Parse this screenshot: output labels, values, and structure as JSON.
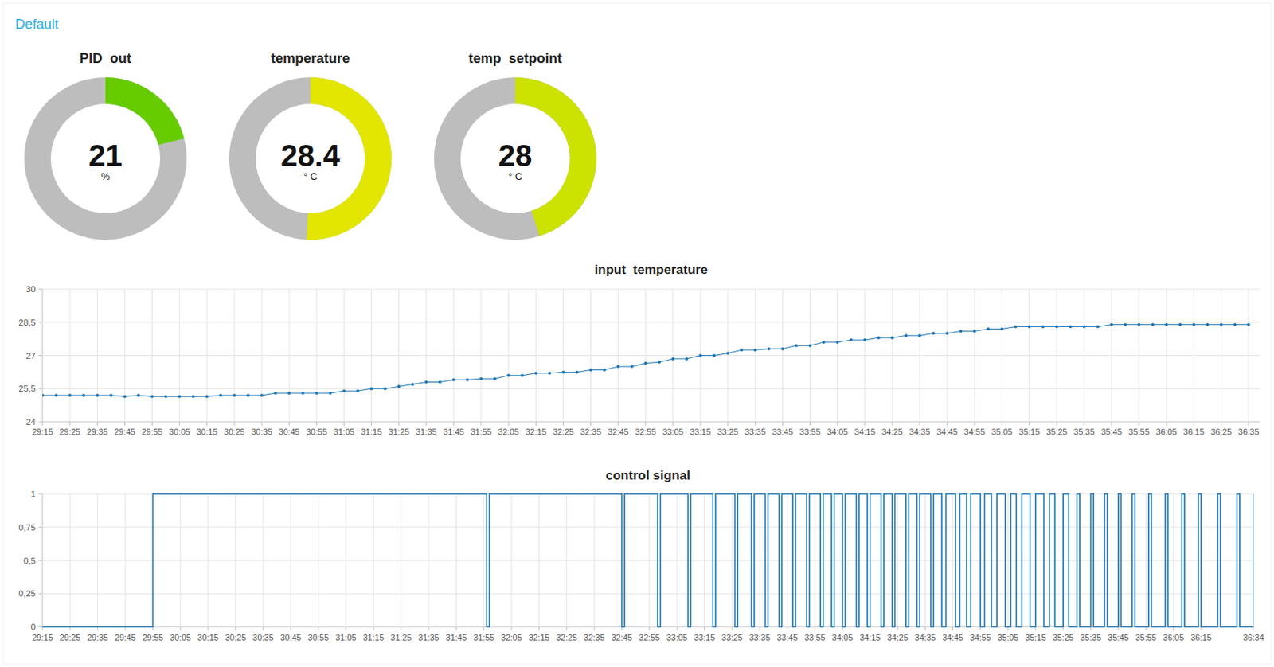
{
  "header": {
    "title": "Default"
  },
  "chart_data": [
    {
      "type": "gauge",
      "title": "PID_out",
      "value": 21,
      "unit": "%",
      "ylim": [
        0,
        100
      ],
      "color": "#66cc00",
      "data_labels": true
    },
    {
      "type": "gauge",
      "title": "temperature",
      "value": 28.4,
      "unit": "° C",
      "ylim": [
        0,
        56
      ],
      "color": "#e2e600",
      "data_labels": true
    },
    {
      "type": "gauge",
      "title": "temp_setpoint",
      "value": 28,
      "unit": "° C",
      "ylim": [
        0,
        62
      ],
      "color": "#cce200",
      "data_labels": true
    },
    {
      "type": "line",
      "title": "input_temperature",
      "color": "#1f77b4",
      "marker": "circle",
      "line_style": "solid",
      "grid": true,
      "x": [
        1755,
        1760,
        1765,
        1770,
        1775,
        1780,
        1785,
        1790,
        1795,
        1800,
        1805,
        1810,
        1815,
        1820,
        1825,
        1830,
        1835,
        1840,
        1845,
        1850,
        1855,
        1860,
        1865,
        1870,
        1875,
        1880,
        1885,
        1890,
        1895,
        1900,
        1905,
        1910,
        1915,
        1920,
        1925,
        1930,
        1935,
        1940,
        1945,
        1950,
        1955,
        1960,
        1965,
        1970,
        1975,
        1980,
        1985,
        1990,
        1995,
        2000,
        2005,
        2010,
        2015,
        2020,
        2025,
        2030,
        2035,
        2040,
        2045,
        2050,
        2055,
        2060,
        2065,
        2070,
        2075,
        2080,
        2085,
        2090,
        2095,
        2100,
        2105,
        2110,
        2115,
        2120,
        2125,
        2130,
        2135,
        2140,
        2145,
        2150,
        2155,
        2160,
        2165,
        2170,
        2175,
        2180,
        2185,
        2190,
        2195
      ],
      "values": [
        25.2,
        25.2,
        25.2,
        25.2,
        25.2,
        25.2,
        25.15,
        25.2,
        25.15,
        25.15,
        25.15,
        25.15,
        25.15,
        25.2,
        25.2,
        25.2,
        25.2,
        25.3,
        25.3,
        25.3,
        25.3,
        25.3,
        25.4,
        25.4,
        25.5,
        25.5,
        25.6,
        25.7,
        25.8,
        25.8,
        25.9,
        25.9,
        25.95,
        25.95,
        26.1,
        26.1,
        26.2,
        26.2,
        26.25,
        26.25,
        26.35,
        26.35,
        26.5,
        26.5,
        26.65,
        26.7,
        26.85,
        26.85,
        27.0,
        27.0,
        27.1,
        27.25,
        27.25,
        27.3,
        27.3,
        27.45,
        27.45,
        27.6,
        27.6,
        27.7,
        27.7,
        27.8,
        27.8,
        27.9,
        27.9,
        28.0,
        28.0,
        28.1,
        28.1,
        28.2,
        28.2,
        28.3,
        28.3,
        28.3,
        28.3,
        28.3,
        28.3,
        28.3,
        28.4,
        28.4,
        28.4,
        28.4,
        28.4,
        28.4,
        28.4,
        28.4,
        28.4,
        28.4,
        28.4
      ],
      "xlim": [
        1755,
        2199
      ],
      "ylim": [
        24,
        30
      ],
      "xticks": [
        {
          "value": 1755,
          "label": "29:15"
        },
        {
          "value": 1765,
          "label": "29:25"
        },
        {
          "value": 1775,
          "label": "29:35"
        },
        {
          "value": 1785,
          "label": "29:45"
        },
        {
          "value": 1795,
          "label": "29:55"
        },
        {
          "value": 1805,
          "label": "30:05"
        },
        {
          "value": 1815,
          "label": "30:15"
        },
        {
          "value": 1825,
          "label": "30:25"
        },
        {
          "value": 1835,
          "label": "30:35"
        },
        {
          "value": 1845,
          "label": "30:45"
        },
        {
          "value": 1855,
          "label": "30:55"
        },
        {
          "value": 1865,
          "label": "31:05"
        },
        {
          "value": 1875,
          "label": "31:15"
        },
        {
          "value": 1885,
          "label": "31:25"
        },
        {
          "value": 1895,
          "label": "31:35"
        },
        {
          "value": 1905,
          "label": "31:45"
        },
        {
          "value": 1915,
          "label": "31:55"
        },
        {
          "value": 1925,
          "label": "32:05"
        },
        {
          "value": 1935,
          "label": "32:15"
        },
        {
          "value": 1945,
          "label": "32:25"
        },
        {
          "value": 1955,
          "label": "32:35"
        },
        {
          "value": 1965,
          "label": "32:45"
        },
        {
          "value": 1975,
          "label": "32:55"
        },
        {
          "value": 1985,
          "label": "33:05"
        },
        {
          "value": 1995,
          "label": "33:15"
        },
        {
          "value": 2005,
          "label": "33:25"
        },
        {
          "value": 2015,
          "label": "33:35"
        },
        {
          "value": 2025,
          "label": "33:45"
        },
        {
          "value": 2035,
          "label": "33:55"
        },
        {
          "value": 2045,
          "label": "34:05"
        },
        {
          "value": 2055,
          "label": "34:15"
        },
        {
          "value": 2065,
          "label": "34:25"
        },
        {
          "value": 2075,
          "label": "34:35"
        },
        {
          "value": 2085,
          "label": "34:45"
        },
        {
          "value": 2095,
          "label": "34:55"
        },
        {
          "value": 2105,
          "label": "35:05"
        },
        {
          "value": 2115,
          "label": "35:15"
        },
        {
          "value": 2125,
          "label": "35:25"
        },
        {
          "value": 2135,
          "label": "35:35"
        },
        {
          "value": 2145,
          "label": "35:45"
        },
        {
          "value": 2155,
          "label": "35:55"
        },
        {
          "value": 2165,
          "label": "36:05"
        },
        {
          "value": 2175,
          "label": "36:15"
        },
        {
          "value": 2185,
          "label": "36:25"
        },
        {
          "value": 2195,
          "label": "36:35"
        }
      ],
      "yticks": [
        24,
        {
          "value": 25.5,
          "label": "25,5"
        },
        27,
        {
          "value": 28.5,
          "label": "28,5"
        },
        30
      ]
    },
    {
      "type": "line",
      "title": "control signal",
      "color": "#1f77b4",
      "line_style": "step",
      "grid": true,
      "x": [
        1755,
        1795,
        1916,
        1917,
        1965,
        1966,
        1978,
        1979,
        1989,
        1990,
        1998,
        1999,
        2006,
        2007,
        2012,
        2013,
        2017,
        2018,
        2022,
        2023,
        2027,
        2028,
        2032,
        2033,
        2037,
        2038,
        2041,
        2042,
        2045,
        2046,
        2050,
        2051,
        2054,
        2055,
        2059,
        2060,
        2063,
        2064,
        2068,
        2069,
        2072,
        2073,
        2077,
        2078,
        2081,
        2082.5,
        2086,
        2087.5,
        2090,
        2091.5,
        2095,
        2096.5,
        2099,
        2101,
        2104,
        2106,
        2108,
        2110,
        2113,
        2115,
        2118,
        2120,
        2122,
        2125,
        2127,
        2130,
        2131,
        2135,
        2136,
        2140,
        2141,
        2145,
        2146,
        2150,
        2151,
        2156,
        2157,
        2162,
        2163,
        2168,
        2169,
        2174,
        2175,
        2181,
        2182,
        2188,
        2189,
        2194
      ],
      "values": [
        0,
        1,
        0,
        1,
        0,
        1,
        0,
        1,
        0,
        1,
        0,
        1,
        0,
        1,
        0,
        1,
        0,
        1,
        0,
        1,
        0,
        1,
        0,
        1,
        0,
        1,
        0,
        1,
        0,
        1,
        0,
        1,
        0,
        1,
        0,
        1,
        0,
        1,
        0,
        1,
        0,
        1,
        0,
        1,
        0,
        1,
        0,
        1,
        0,
        1,
        0,
        1,
        0,
        1,
        0,
        1,
        0,
        1,
        0,
        1,
        0,
        1,
        0,
        1,
        0,
        1,
        0,
        1,
        0,
        1,
        0,
        1,
        0,
        1,
        0,
        1,
        0,
        1,
        0,
        1,
        0,
        1,
        0,
        1,
        0,
        1,
        0,
        1
      ],
      "xlim": [
        1755,
        2194
      ],
      "ylim": [
        0,
        1
      ],
      "xticks": [
        {
          "value": 1755,
          "label": "29:15"
        },
        {
          "value": 1765,
          "label": "29:25"
        },
        {
          "value": 1775,
          "label": "29:35"
        },
        {
          "value": 1785,
          "label": "29:45"
        },
        {
          "value": 1795,
          "label": "29:55"
        },
        {
          "value": 1805,
          "label": "30:05"
        },
        {
          "value": 1815,
          "label": "30:15"
        },
        {
          "value": 1825,
          "label": "30:25"
        },
        {
          "value": 1835,
          "label": "30:35"
        },
        {
          "value": 1845,
          "label": "30:45"
        },
        {
          "value": 1855,
          "label": "30:55"
        },
        {
          "value": 1865,
          "label": "31:05"
        },
        {
          "value": 1875,
          "label": "31:15"
        },
        {
          "value": 1885,
          "label": "31:25"
        },
        {
          "value": 1895,
          "label": "31:35"
        },
        {
          "value": 1905,
          "label": "31:45"
        },
        {
          "value": 1915,
          "label": "31:55"
        },
        {
          "value": 1925,
          "label": "32:05"
        },
        {
          "value": 1935,
          "label": "32:15"
        },
        {
          "value": 1945,
          "label": "32:25"
        },
        {
          "value": 1955,
          "label": "32:35"
        },
        {
          "value": 1965,
          "label": "32:45"
        },
        {
          "value": 1975,
          "label": "32:55"
        },
        {
          "value": 1985,
          "label": "33:05"
        },
        {
          "value": 1995,
          "label": "33:15"
        },
        {
          "value": 2005,
          "label": "33:25"
        },
        {
          "value": 2015,
          "label": "33:35"
        },
        {
          "value": 2025,
          "label": "33:45"
        },
        {
          "value": 2035,
          "label": "33:55"
        },
        {
          "value": 2045,
          "label": "34:05"
        },
        {
          "value": 2055,
          "label": "34:15"
        },
        {
          "value": 2065,
          "label": "34:25"
        },
        {
          "value": 2075,
          "label": "34:35"
        },
        {
          "value": 2085,
          "label": "34:45"
        },
        {
          "value": 2095,
          "label": "34:55"
        },
        {
          "value": 2105,
          "label": "35:05"
        },
        {
          "value": 2115,
          "label": "35:15"
        },
        {
          "value": 2125,
          "label": "35:25"
        },
        {
          "value": 2135,
          "label": "35:35"
        },
        {
          "value": 2145,
          "label": "35:45"
        },
        {
          "value": 2155,
          "label": "35:55"
        },
        {
          "value": 2165,
          "label": "36:05"
        },
        {
          "value": 2175,
          "label": "36:15"
        },
        {
          "value": 2194,
          "label": "36:34"
        }
      ],
      "yticks": [
        0,
        {
          "value": 0.25,
          "label": "0,25"
        },
        {
          "value": 0.5,
          "label": "0,5"
        },
        {
          "value": 0.75,
          "label": "0,75"
        },
        1
      ]
    }
  ]
}
